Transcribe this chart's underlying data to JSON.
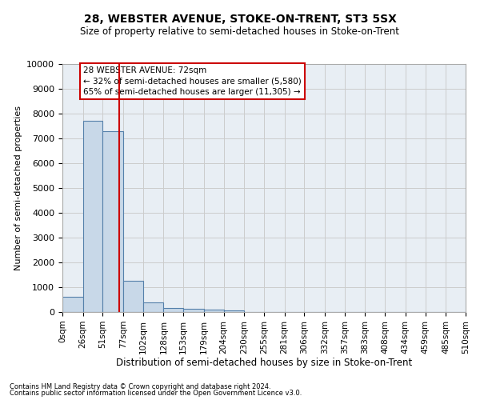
{
  "title": "28, WEBSTER AVENUE, STOKE-ON-TRENT, ST3 5SX",
  "subtitle": "Size of property relative to semi-detached houses in Stoke-on-Trent",
  "xlabel": "Distribution of semi-detached houses by size in Stoke-on-Trent",
  "ylabel": "Number of semi-detached properties",
  "footer1": "Contains HM Land Registry data © Crown copyright and database right 2024.",
  "footer2": "Contains public sector information licensed under the Open Government Licence v3.0.",
  "bin_edges": [
    0,
    26,
    51,
    77,
    102,
    128,
    153,
    179,
    204,
    230,
    255,
    281,
    306,
    332,
    357,
    383,
    408,
    434,
    459,
    485,
    510
  ],
  "bar_heights": [
    600,
    7700,
    7300,
    1250,
    400,
    150,
    130,
    100,
    70,
    0,
    0,
    0,
    0,
    0,
    0,
    0,
    0,
    0,
    0,
    0
  ],
  "bar_color": "#c8d8e8",
  "bar_edge_color": "#5580aa",
  "bar_edge_width": 0.8,
  "grid_color": "#cccccc",
  "bg_color": "#e8eef4",
  "red_line_x": 72,
  "property_size": 72,
  "pct_smaller": 32,
  "count_smaller": 5580,
  "pct_larger": 65,
  "count_larger": 11305,
  "annotation_box_color": "#ffffff",
  "annotation_border_color": "#cc0000",
  "ylim": [
    0,
    10000
  ],
  "yticks": [
    0,
    1000,
    2000,
    3000,
    4000,
    5000,
    6000,
    7000,
    8000,
    9000,
    10000
  ]
}
